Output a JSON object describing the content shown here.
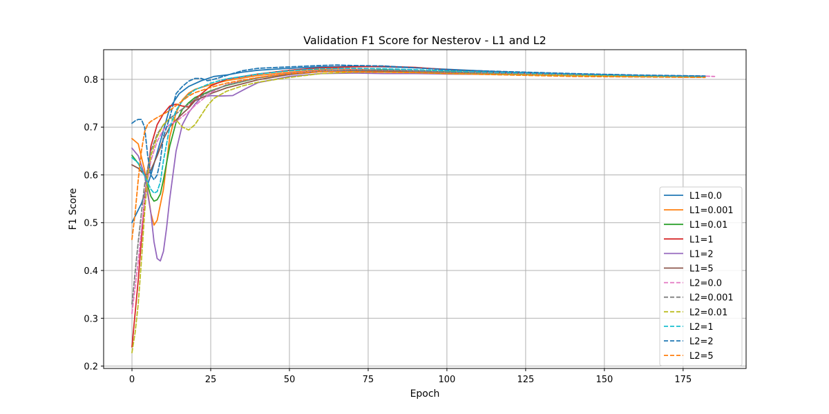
{
  "chart_data": {
    "type": "line",
    "title": "Validation F1 Score for Nesterov - L1 and L2",
    "xlabel": "Epoch",
    "ylabel": "F1 Score",
    "xlim": [
      -9,
      195
    ],
    "ylim": [
      0.195,
      0.862
    ],
    "x_ticks": [
      0,
      25,
      50,
      75,
      100,
      125,
      150,
      175
    ],
    "y_ticks": [
      0.2,
      0.3,
      0.4,
      0.5,
      0.6,
      0.7,
      0.8
    ],
    "grid": true,
    "legend_position": "lower-right",
    "series": [
      {
        "name": "L1=0.0",
        "color": "#1f77b4",
        "dashed": false,
        "x": [
          0,
          3,
          6,
          9,
          12,
          15,
          18,
          22,
          26,
          30,
          35,
          40,
          50,
          60,
          70,
          80,
          90,
          100,
          110,
          120,
          140,
          160,
          182
        ],
        "y": [
          0.5,
          0.54,
          0.6,
          0.67,
          0.74,
          0.77,
          0.785,
          0.797,
          0.806,
          0.809,
          0.815,
          0.819,
          0.823,
          0.826,
          0.827,
          0.826,
          0.824,
          0.821,
          0.818,
          0.815,
          0.811,
          0.808,
          0.806
        ]
      },
      {
        "name": "L1=0.001",
        "color": "#ff7f0e",
        "dashed": false,
        "x": [
          0,
          2,
          4,
          6,
          7,
          8,
          10,
          12,
          14,
          16,
          18,
          20,
          25,
          30,
          40,
          50,
          60,
          65,
          70,
          80,
          90,
          100,
          120,
          140,
          160,
          182
        ],
        "y": [
          0.676,
          0.665,
          0.61,
          0.52,
          0.495,
          0.505,
          0.57,
          0.68,
          0.73,
          0.757,
          0.771,
          0.779,
          0.789,
          0.797,
          0.808,
          0.815,
          0.82,
          0.822,
          0.821,
          0.819,
          0.818,
          0.815,
          0.812,
          0.809,
          0.807,
          0.806
        ]
      },
      {
        "name": "L1=0.01",
        "color": "#2ca02c",
        "dashed": false,
        "x": [
          0,
          2,
          4,
          6,
          7,
          8,
          9,
          10,
          12,
          14,
          16,
          18,
          20,
          25,
          30,
          40,
          50,
          60,
          70,
          80,
          90,
          100,
          120,
          140,
          160,
          182
        ],
        "y": [
          0.641,
          0.624,
          0.6,
          0.555,
          0.545,
          0.548,
          0.56,
          0.59,
          0.66,
          0.71,
          0.737,
          0.751,
          0.762,
          0.776,
          0.787,
          0.803,
          0.812,
          0.818,
          0.819,
          0.82,
          0.818,
          0.816,
          0.812,
          0.809,
          0.807,
          0.806
        ]
      },
      {
        "name": "L1=1",
        "color": "#d62728",
        "dashed": false,
        "x": [
          0,
          2,
          4,
          6,
          8,
          10,
          12,
          14,
          16,
          18,
          20,
          25,
          30,
          40,
          50,
          60,
          70,
          80,
          90,
          100,
          120,
          140,
          160,
          182
        ],
        "y": [
          0.24,
          0.38,
          0.55,
          0.66,
          0.705,
          0.728,
          0.744,
          0.748,
          0.744,
          0.742,
          0.758,
          0.786,
          0.8,
          0.811,
          0.819,
          0.824,
          0.826,
          0.827,
          0.825,
          0.82,
          0.814,
          0.81,
          0.808,
          0.806
        ]
      },
      {
        "name": "L1=2",
        "color": "#9467bd",
        "dashed": false,
        "x": [
          0,
          2,
          4,
          6,
          7,
          8,
          9,
          10,
          11,
          12,
          14,
          16,
          18,
          20,
          22,
          25,
          28,
          32,
          36,
          40,
          50,
          60,
          70,
          80,
          90,
          100,
          120,
          140,
          160,
          182
        ],
        "y": [
          0.656,
          0.64,
          0.6,
          0.52,
          0.46,
          0.425,
          0.42,
          0.44,
          0.49,
          0.55,
          0.65,
          0.705,
          0.73,
          0.748,
          0.762,
          0.766,
          0.765,
          0.766,
          0.78,
          0.793,
          0.806,
          0.812,
          0.813,
          0.812,
          0.812,
          0.811,
          0.81,
          0.808,
          0.806,
          0.805
        ]
      },
      {
        "name": "L1=5",
        "color": "#8c564b",
        "dashed": false,
        "x": [
          0,
          2,
          4,
          5,
          6,
          8,
          10,
          12,
          14,
          16,
          18,
          20,
          25,
          30,
          40,
          50,
          60,
          70,
          80,
          90,
          100,
          120,
          140,
          160,
          182
        ],
        "y": [
          0.621,
          0.614,
          0.6,
          0.6,
          0.61,
          0.64,
          0.675,
          0.7,
          0.715,
          0.728,
          0.74,
          0.755,
          0.77,
          0.782,
          0.799,
          0.81,
          0.816,
          0.818,
          0.817,
          0.816,
          0.814,
          0.811,
          0.808,
          0.806,
          0.805
        ]
      },
      {
        "name": "L2=0.0",
        "color": "#e377c2",
        "dashed": true,
        "x": [
          0,
          2,
          4,
          6,
          8,
          10,
          12,
          14,
          16,
          18,
          20,
          25,
          30,
          40,
          50,
          60,
          70,
          80,
          90,
          100,
          120,
          140,
          160,
          180,
          185
        ],
        "y": [
          0.31,
          0.42,
          0.55,
          0.63,
          0.67,
          0.695,
          0.705,
          0.712,
          0.722,
          0.732,
          0.745,
          0.772,
          0.789,
          0.804,
          0.813,
          0.818,
          0.82,
          0.819,
          0.818,
          0.815,
          0.812,
          0.81,
          0.808,
          0.807,
          0.806
        ]
      },
      {
        "name": "L2=0.001",
        "color": "#7f7f7f",
        "dashed": true,
        "x": [
          0,
          2,
          4,
          6,
          8,
          10,
          12,
          14,
          16,
          18,
          20,
          25,
          30,
          40,
          50,
          60,
          70,
          80,
          90,
          100,
          120,
          140,
          160,
          182
        ],
        "y": [
          0.33,
          0.46,
          0.58,
          0.65,
          0.685,
          0.705,
          0.718,
          0.728,
          0.738,
          0.748,
          0.758,
          0.775,
          0.788,
          0.803,
          0.812,
          0.817,
          0.819,
          0.819,
          0.817,
          0.815,
          0.811,
          0.808,
          0.807,
          0.806
        ]
      },
      {
        "name": "L2=0.01",
        "color": "#bcbd22",
        "dashed": true,
        "x": [
          0,
          1,
          2,
          3,
          4,
          5,
          6,
          8,
          10,
          12,
          14,
          16,
          18,
          20,
          22,
          24,
          26,
          30,
          35,
          40,
          50,
          60,
          70,
          80,
          90,
          100,
          120,
          140,
          160,
          182
        ],
        "y": [
          0.228,
          0.27,
          0.33,
          0.42,
          0.52,
          0.6,
          0.64,
          0.68,
          0.705,
          0.718,
          0.715,
          0.7,
          0.694,
          0.705,
          0.725,
          0.745,
          0.76,
          0.775,
          0.786,
          0.794,
          0.804,
          0.812,
          0.815,
          0.815,
          0.814,
          0.812,
          0.81,
          0.808,
          0.806,
          0.805
        ]
      },
      {
        "name": "L2=1",
        "color": "#17becf",
        "dashed": true,
        "x": [
          0,
          2,
          4,
          6,
          7,
          8,
          9,
          10,
          12,
          14,
          16,
          18,
          20,
          25,
          30,
          40,
          50,
          60,
          70,
          80,
          90,
          100,
          120,
          140,
          160,
          182
        ],
        "y": [
          0.636,
          0.625,
          0.598,
          0.57,
          0.562,
          0.565,
          0.585,
          0.63,
          0.7,
          0.735,
          0.755,
          0.768,
          0.778,
          0.792,
          0.801,
          0.811,
          0.818,
          0.822,
          0.823,
          0.822,
          0.82,
          0.818,
          0.814,
          0.811,
          0.808,
          0.806
        ]
      },
      {
        "name": "L2=2",
        "color": "#1f77b4",
        "dashed": true,
        "x": [
          0,
          1,
          2,
          3,
          4,
          5,
          6,
          7,
          8,
          9,
          10,
          12,
          14,
          16,
          18,
          20,
          22,
          24,
          26,
          30,
          35,
          40,
          50,
          60,
          65,
          70,
          80,
          90,
          100,
          120,
          140,
          160,
          182
        ],
        "y": [
          0.708,
          0.713,
          0.716,
          0.716,
          0.7,
          0.64,
          0.6,
          0.59,
          0.6,
          0.63,
          0.68,
          0.72,
          0.77,
          0.785,
          0.796,
          0.802,
          0.802,
          0.797,
          0.8,
          0.808,
          0.818,
          0.823,
          0.826,
          0.829,
          0.83,
          0.829,
          0.828,
          0.824,
          0.82,
          0.816,
          0.812,
          0.809,
          0.807
        ]
      },
      {
        "name": "L2=5",
        "color": "#ff7f0e",
        "dashed": true,
        "x": [
          0,
          1,
          2,
          3,
          4,
          5,
          6,
          8,
          10,
          12,
          14,
          16,
          18,
          20,
          25,
          30,
          40,
          50,
          60,
          70,
          80,
          90,
          100,
          120,
          140,
          160,
          182
        ],
        "y": [
          0.465,
          0.52,
          0.59,
          0.65,
          0.69,
          0.706,
          0.712,
          0.72,
          0.727,
          0.735,
          0.745,
          0.755,
          0.765,
          0.772,
          0.783,
          0.792,
          0.804,
          0.812,
          0.816,
          0.816,
          0.815,
          0.814,
          0.812,
          0.809,
          0.806,
          0.805,
          0.804
        ]
      }
    ]
  }
}
